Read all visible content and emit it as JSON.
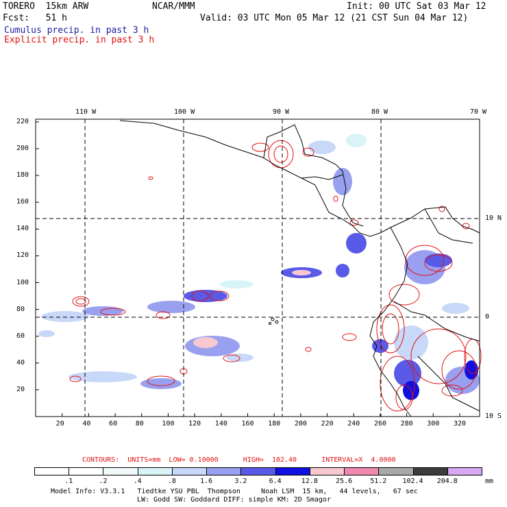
{
  "header": {
    "model": "TORERO  15km ARW",
    "org": "NCAR/MMM",
    "init": "Init: 00 UTC Sat 03 Mar 12",
    "fcst": "Fcst:   51 h",
    "valid": "Valid: 03 UTC Mon 05 Mar 12 (21 CST Sun 04 Mar 12)",
    "field1": "Cumulus precip. in past 3 h",
    "field2": "Explicit precip. in past 3 h"
  },
  "colors": {
    "field1": "#1a1aa0",
    "field2": "#e01010",
    "coast": "#000000",
    "explicit_contour": "#e01010"
  },
  "map": {
    "lon_labels": [
      "110 W",
      "100 W",
      "90 W",
      "80 W",
      "70 W"
    ],
    "lat_labels": [
      "10 N",
      "0",
      "10 S"
    ],
    "x_ticks": [
      "20",
      "40",
      "60",
      "80",
      "100",
      "120",
      "140",
      "160",
      "180",
      "200",
      "220",
      "240",
      "260",
      "280",
      "300",
      "320"
    ],
    "y_ticks": [
      "20",
      "40",
      "60",
      "80",
      "100",
      "120",
      "140",
      "160",
      "180",
      "200",
      "220"
    ],
    "x_range": [
      0,
      335
    ],
    "y_range": [
      0,
      222
    ]
  },
  "contour_info": {
    "label": "CONTOURS:  UNITS=mm  LOW= 0.10000      HIGH=  102.40      INTERVAL=X  4.0000"
  },
  "colorbar": {
    "levels": [
      ".1",
      ".2",
      ".4",
      ".8",
      "1.6",
      "3.2",
      "6.4",
      "12.8",
      "25.6",
      "51.2",
      "102.4",
      "204.8"
    ],
    "colors": [
      "#ffffff",
      "#ffffff",
      "#f0fafa",
      "#d8f4f8",
      "#c8d8f8",
      "#9aa0f0",
      "#5a5ae8",
      "#1010e0",
      "#f8c8d0",
      "#f088b0",
      "#a8a8a8",
      "#3c3c3c",
      "#d8a8f0"
    ],
    "units": "mm"
  },
  "footer": {
    "line1": "Model Info: V3.3.1   Tiedtke YSU PBL  Thompson     Noah LSM  15 km,   44 levels,   67 sec",
    "line2": "LW: Godd SW: Goddard DIFF: simple KM: 2D Smagor"
  }
}
